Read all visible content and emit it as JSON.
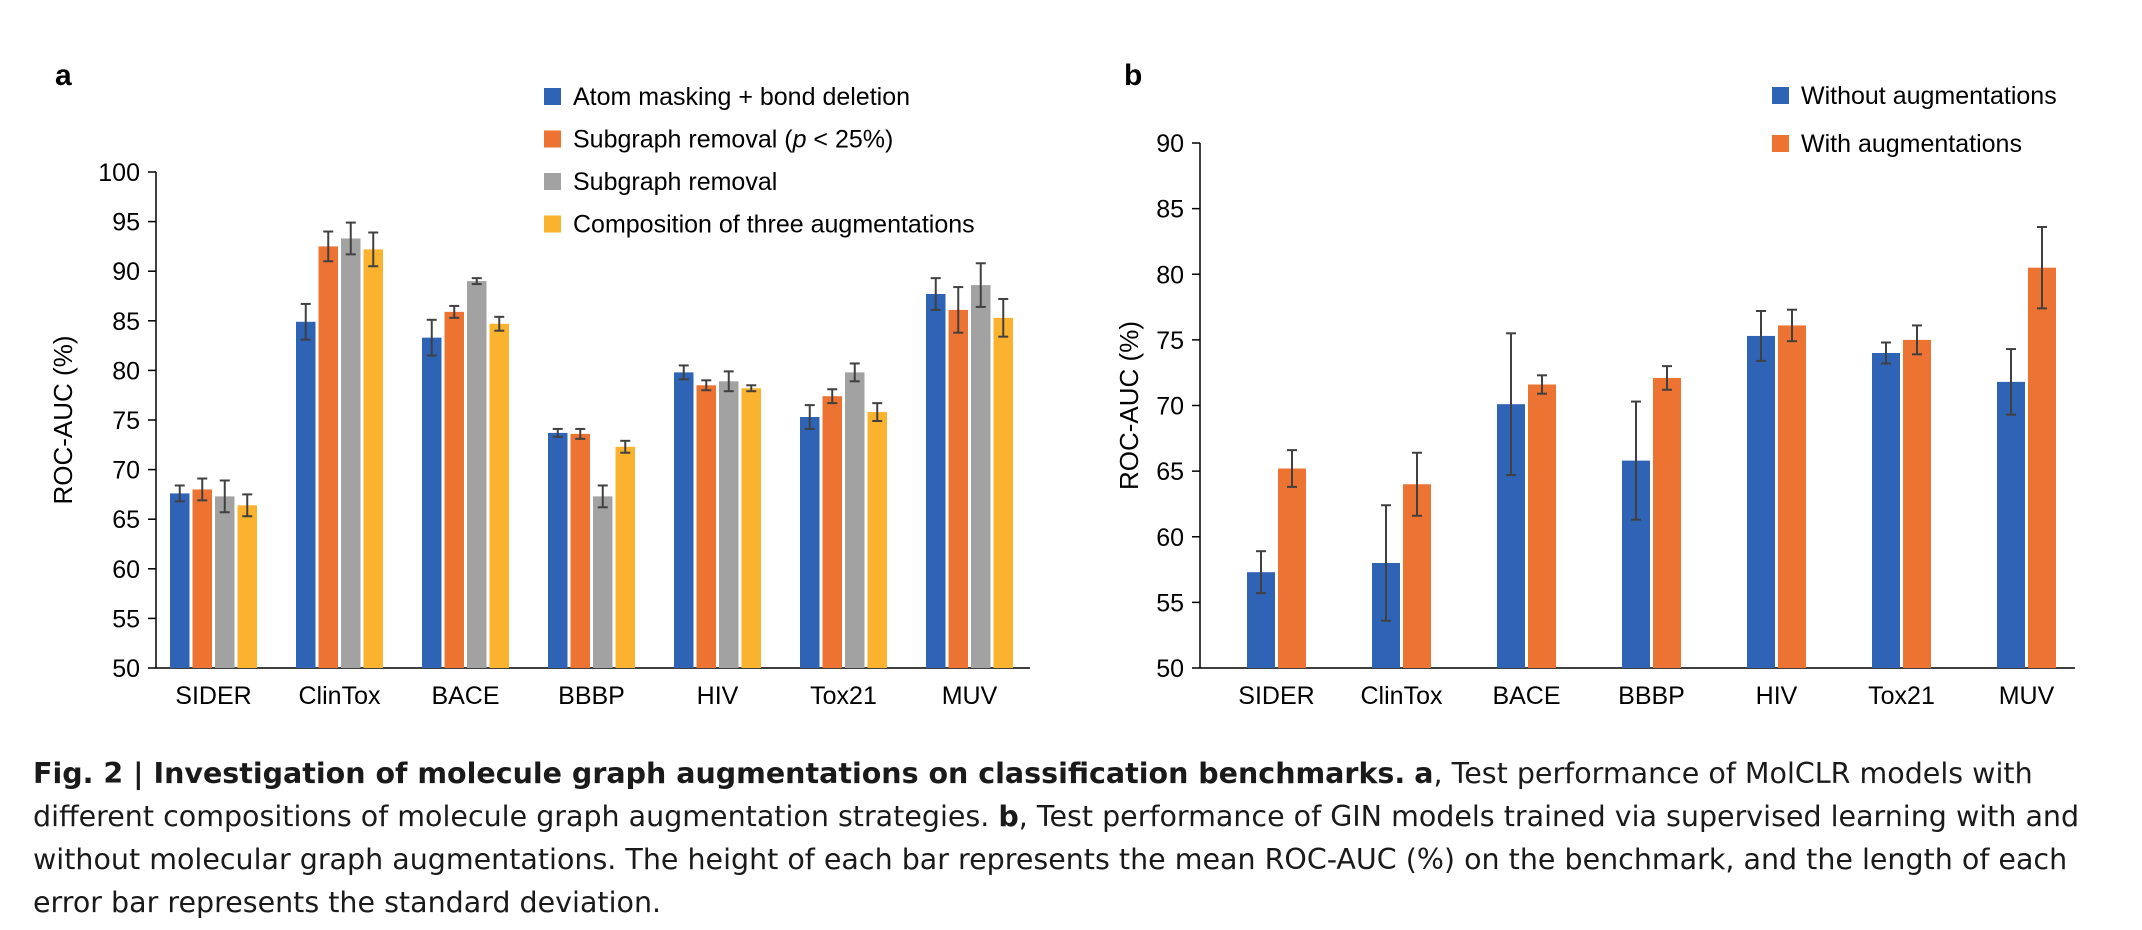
{
  "colors": {
    "blue": "#2f63b5",
    "orange": "#ed7332",
    "gray": "#a2a2a2",
    "yellow": "#fbb22e",
    "errorbar": "#404040",
    "axis": "#000000"
  },
  "chart_data": [
    {
      "panel": "a",
      "type": "bar",
      "ylabel": "ROC-AUC (%)",
      "ylim": [
        50,
        100
      ],
      "yticks": [
        50,
        55,
        60,
        65,
        70,
        75,
        80,
        85,
        90,
        95,
        100
      ],
      "categories": [
        "SIDER",
        "ClinTox",
        "BACE",
        "BBBP",
        "HIV",
        "Tox21",
        "MUV"
      ],
      "legend_position": "top-right",
      "series": [
        {
          "name": "Atom masking + bond deletion",
          "color": "#2f63b5",
          "values": [
            67.6,
            84.9,
            83.3,
            73.7,
            79.8,
            75.3,
            87.7
          ],
          "errors": [
            0.8,
            1.8,
            1.8,
            0.4,
            0.7,
            1.2,
            1.6
          ]
        },
        {
          "name": "Subgraph removal (p < 25%)",
          "color": "#ed7332",
          "values": [
            68.0,
            92.5,
            85.9,
            73.6,
            78.5,
            77.4,
            86.1
          ],
          "errors": [
            1.1,
            1.5,
            0.6,
            0.5,
            0.5,
            0.7,
            2.3
          ]
        },
        {
          "name": "Subgraph removal",
          "color": "#a2a2a2",
          "values": [
            67.3,
            93.3,
            89.0,
            67.3,
            78.9,
            79.8,
            88.6
          ],
          "errors": [
            1.6,
            1.6,
            0.3,
            1.1,
            1.0,
            0.9,
            2.2
          ]
        },
        {
          "name": "Composition of three augmentations",
          "color": "#fbb22e",
          "values": [
            66.4,
            92.2,
            84.7,
            72.3,
            78.2,
            75.8,
            85.3
          ],
          "errors": [
            1.1,
            1.7,
            0.7,
            0.6,
            0.3,
            0.9,
            1.9
          ]
        }
      ]
    },
    {
      "panel": "b",
      "type": "bar",
      "ylabel": "ROC-AUC (%)",
      "ylim": [
        50,
        90
      ],
      "yticks": [
        50,
        55,
        60,
        65,
        70,
        75,
        80,
        85,
        90
      ],
      "categories": [
        "SIDER",
        "ClinTox",
        "BACE",
        "BBBP",
        "HIV",
        "Tox21",
        "MUV"
      ],
      "legend_position": "top-right",
      "series": [
        {
          "name": "Without augmentations",
          "color": "#2f63b5",
          "values": [
            57.3,
            58.0,
            70.1,
            65.8,
            75.3,
            74.0,
            71.8
          ],
          "errors": [
            1.6,
            4.4,
            5.4,
            4.5,
            1.9,
            0.8,
            2.5
          ]
        },
        {
          "name": "With augmentations",
          "color": "#ed7332",
          "values": [
            65.2,
            64.0,
            71.6,
            72.1,
            76.1,
            75.0,
            80.5
          ],
          "errors": [
            1.4,
            2.4,
            0.7,
            0.9,
            1.2,
            1.1,
            3.1
          ]
        }
      ]
    }
  ],
  "caption": {
    "fig_label": "Fig. 2 | Investigation of molecule graph augmentations on classification benchmarks.",
    "a_label": "a",
    "a_text": ", Test performance of MolCLR models with different compositions of molecule graph augmentation strategies.",
    "b_label": "b",
    "b_text": ", Test performance of GIN models trained via supervised learning with and without molecular graph augmentations. The height of each bar represents the mean ROC-AUC (%) on the benchmark, and the length of each error bar represents the standard deviation."
  }
}
